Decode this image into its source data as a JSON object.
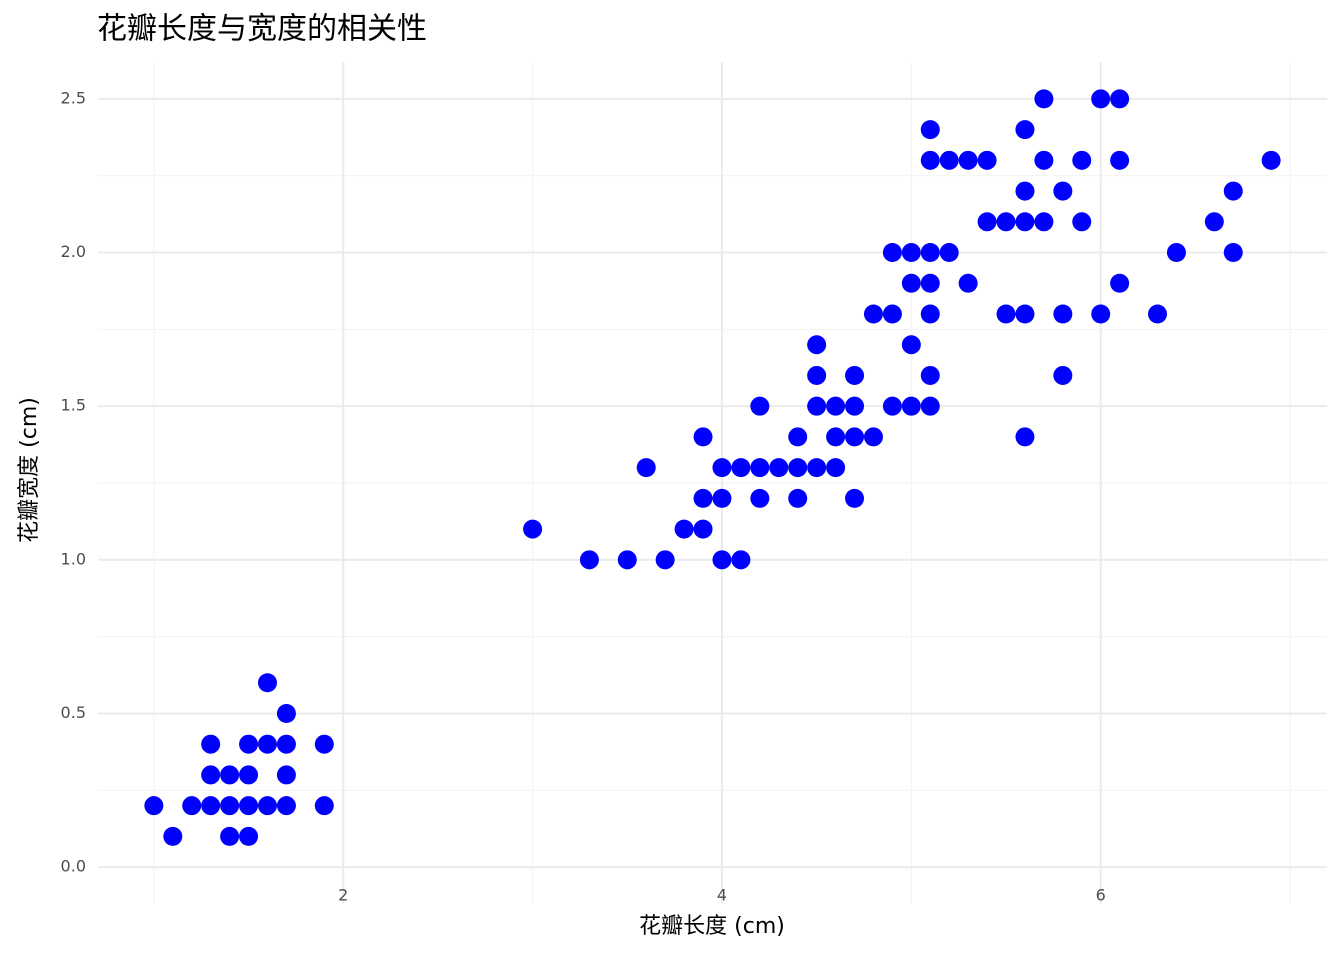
{
  "chart_data": {
    "type": "scatter",
    "title": "花瓣长度与宽度的相关性",
    "x_label": "花瓣长度 (cm)",
    "y_label": "花瓣宽度 (cm)",
    "color": "#0000ff",
    "grid": true,
    "x": [
      1.0,
      1.1,
      1.2,
      1.3,
      1.3,
      1.3,
      1.4,
      1.4,
      1.4,
      1.5,
      1.5,
      1.5,
      1.5,
      1.6,
      1.6,
      1.6,
      1.7,
      1.7,
      1.7,
      1.7,
      1.9,
      1.9,
      3.3,
      3.5,
      3.7,
      4.0,
      4.1,
      3.0,
      3.8,
      3.9,
      3.9,
      4.0,
      4.2,
      4.4,
      4.7,
      3.6,
      4.0,
      4.1,
      4.2,
      4.3,
      4.4,
      4.5,
      4.6,
      3.9,
      4.4,
      4.6,
      4.7,
      4.8,
      5.6,
      4.2,
      4.5,
      4.6,
      4.7,
      4.9,
      5.0,
      5.1,
      4.5,
      4.7,
      5.1,
      5.8,
      4.5,
      5.0,
      4.8,
      4.9,
      5.1,
      5.5,
      5.6,
      5.8,
      6.0,
      6.3,
      5.0,
      5.1,
      5.3,
      6.1,
      4.9,
      5.0,
      5.1,
      5.2,
      6.4,
      6.7,
      5.4,
      5.5,
      5.6,
      5.7,
      5.9,
      6.6,
      5.6,
      5.8,
      6.7,
      5.1,
      5.2,
      5.3,
      5.4,
      5.7,
      5.9,
      6.1,
      6.9,
      5.1,
      5.6,
      5.7,
      6.0,
      6.1
    ],
    "values": [
      0.2,
      0.1,
      0.2,
      0.2,
      0.3,
      0.4,
      0.1,
      0.2,
      0.3,
      0.1,
      0.2,
      0.3,
      0.4,
      0.2,
      0.4,
      0.6,
      0.2,
      0.3,
      0.4,
      0.5,
      0.2,
      0.4,
      1.0,
      1.0,
      1.0,
      1.0,
      1.0,
      1.1,
      1.1,
      1.1,
      1.2,
      1.2,
      1.2,
      1.2,
      1.2,
      1.3,
      1.3,
      1.3,
      1.3,
      1.3,
      1.3,
      1.3,
      1.3,
      1.4,
      1.4,
      1.4,
      1.4,
      1.4,
      1.4,
      1.5,
      1.5,
      1.5,
      1.5,
      1.5,
      1.5,
      1.5,
      1.6,
      1.6,
      1.6,
      1.6,
      1.7,
      1.7,
      1.8,
      1.8,
      1.8,
      1.8,
      1.8,
      1.8,
      1.8,
      1.8,
      1.9,
      1.9,
      1.9,
      1.9,
      2.0,
      2.0,
      2.0,
      2.0,
      2.0,
      2.0,
      2.1,
      2.1,
      2.1,
      2.1,
      2.1,
      2.1,
      2.2,
      2.2,
      2.2,
      2.3,
      2.3,
      2.3,
      2.3,
      2.3,
      2.3,
      2.3,
      2.3,
      2.4,
      2.4,
      2.5,
      2.5,
      2.5
    ],
    "xlim": [
      0.705,
      7.195
    ],
    "xticks": [
      2,
      4,
      6
    ],
    "x_minor_grid": [
      1,
      3,
      5,
      7
    ],
    "ylim": [
      -0.12,
      2.62
    ],
    "yticks": [
      {
        "value": 0,
        "label": "0.0"
      },
      0.5,
      {
        "value": 1,
        "label": "1.0"
      },
      1.5,
      {
        "value": 2,
        "label": "2.0"
      },
      2.5
    ],
    "y_minor_grid": [
      0.25,
      0.75,
      1.25,
      1.75,
      2.25
    ]
  }
}
